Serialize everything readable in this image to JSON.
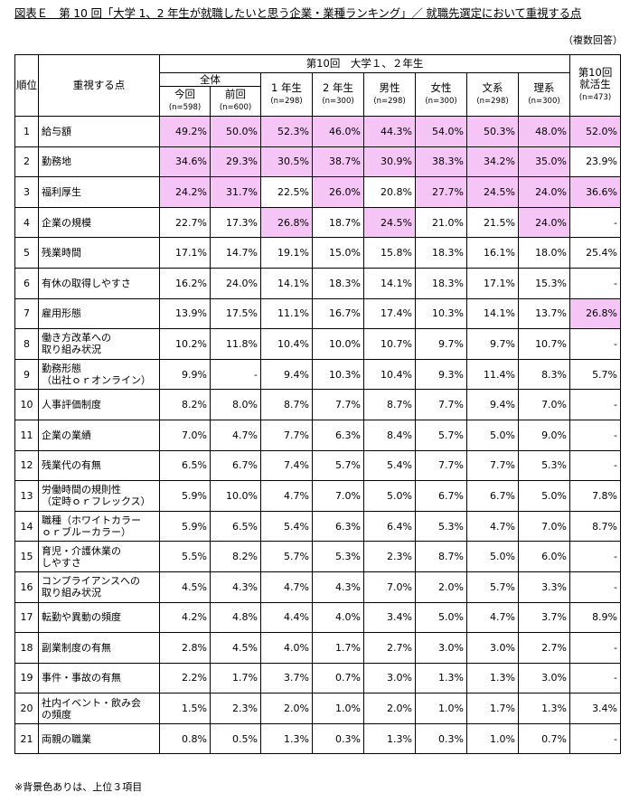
{
  "title": "図表Ｅ　第 10 回「大学 1、2 年生が就職したいと思う企業・業種ランキング」／ 就職先選定において重視する点",
  "note_top": "（複数回答）",
  "footnote": "※背景色ありは、上位３項目",
  "highlight_color": "#f5c6f5",
  "headers": {
    "rank": "順位",
    "item": "重視する点",
    "group": "第10回　大学１、２年生",
    "total": "全体",
    "current": "今回",
    "current_n": "(n=598)",
    "previous": "前回",
    "previous_n": "(n=600)",
    "year1": "1 年生",
    "year1_n": "(n=298)",
    "year2": "2 年生",
    "year2_n": "(n=300)",
    "male": "男性",
    "male_n": "(n=298)",
    "female": "女性",
    "female_n": "(n=300)",
    "humanities": "文系",
    "humanities_n": "(n=298)",
    "science": "理系",
    "science_n": "(n=300)",
    "jobhunt": "第10回\n就活生",
    "jobhunt_n": "(n=473)"
  },
  "rows": [
    {
      "rank": "1",
      "item": "給与額",
      "values": [
        "49.2%",
        "50.0%",
        "52.3%",
        "46.0%",
        "44.3%",
        "54.0%",
        "50.3%",
        "48.0%",
        "52.0%"
      ],
      "hl": [
        1,
        1,
        1,
        1,
        1,
        1,
        1,
        1,
        1
      ]
    },
    {
      "rank": "2",
      "item": "勤務地",
      "values": [
        "34.6%",
        "29.3%",
        "30.5%",
        "38.7%",
        "30.9%",
        "38.3%",
        "34.2%",
        "35.0%",
        "23.9%"
      ],
      "hl": [
        1,
        1,
        1,
        1,
        1,
        1,
        1,
        1,
        0
      ]
    },
    {
      "rank": "3",
      "item": "福利厚生",
      "values": [
        "24.2%",
        "31.7%",
        "22.5%",
        "26.0%",
        "20.8%",
        "27.7%",
        "24.5%",
        "24.0%",
        "36.6%"
      ],
      "hl": [
        1,
        1,
        0,
        1,
        0,
        1,
        1,
        1,
        1
      ]
    },
    {
      "rank": "4",
      "item": "企業の規模",
      "values": [
        "22.7%",
        "17.3%",
        "26.8%",
        "18.7%",
        "24.5%",
        "21.0%",
        "21.5%",
        "24.0%",
        "-"
      ],
      "hl": [
        0,
        0,
        1,
        0,
        1,
        0,
        0,
        1,
        0
      ]
    },
    {
      "rank": "5",
      "item": "残業時間",
      "values": [
        "17.1%",
        "14.7%",
        "19.1%",
        "15.0%",
        "15.8%",
        "18.3%",
        "16.1%",
        "18.0%",
        "25.4%"
      ],
      "hl": [
        0,
        0,
        0,
        0,
        0,
        0,
        0,
        0,
        0
      ]
    },
    {
      "rank": "6",
      "item": "有休の取得しやすさ",
      "values": [
        "16.2%",
        "24.0%",
        "14.1%",
        "18.3%",
        "14.1%",
        "18.3%",
        "17.1%",
        "15.3%",
        "-"
      ],
      "hl": [
        0,
        0,
        0,
        0,
        0,
        0,
        0,
        0,
        0
      ]
    },
    {
      "rank": "7",
      "item": "雇用形態",
      "values": [
        "13.9%",
        "17.5%",
        "11.1%",
        "16.7%",
        "17.4%",
        "10.3%",
        "14.1%",
        "13.7%",
        "26.8%"
      ],
      "hl": [
        0,
        0,
        0,
        0,
        0,
        0,
        0,
        0,
        1
      ]
    },
    {
      "rank": "8",
      "item": "働き方改革への\n取り組み状況",
      "values": [
        "10.2%",
        "11.8%",
        "10.4%",
        "10.0%",
        "10.7%",
        "9.7%",
        "9.7%",
        "10.7%",
        "-"
      ],
      "hl": [
        0,
        0,
        0,
        0,
        0,
        0,
        0,
        0,
        0
      ]
    },
    {
      "rank": "9",
      "item": "勤務形態\n（出社ｏｒオンライン）",
      "values": [
        "9.9%",
        "-",
        "9.4%",
        "10.3%",
        "10.4%",
        "9.3%",
        "11.4%",
        "8.3%",
        "5.7%"
      ],
      "hl": [
        0,
        0,
        0,
        0,
        0,
        0,
        0,
        0,
        0
      ]
    },
    {
      "rank": "10",
      "item": "人事評価制度",
      "values": [
        "8.2%",
        "8.0%",
        "8.7%",
        "7.7%",
        "8.7%",
        "7.7%",
        "9.4%",
        "7.0%",
        "-"
      ],
      "hl": [
        0,
        0,
        0,
        0,
        0,
        0,
        0,
        0,
        0
      ]
    },
    {
      "rank": "11",
      "item": "企業の業績",
      "values": [
        "7.0%",
        "4.7%",
        "7.7%",
        "6.3%",
        "8.4%",
        "5.7%",
        "5.0%",
        "9.0%",
        "-"
      ],
      "hl": [
        0,
        0,
        0,
        0,
        0,
        0,
        0,
        0,
        0
      ]
    },
    {
      "rank": "12",
      "item": "残業代の有無",
      "values": [
        "6.5%",
        "6.7%",
        "7.4%",
        "5.7%",
        "5.4%",
        "7.7%",
        "7.7%",
        "5.3%",
        "-"
      ],
      "hl": [
        0,
        0,
        0,
        0,
        0,
        0,
        0,
        0,
        0
      ]
    },
    {
      "rank": "13",
      "item": "労働時間の規則性\n（定時ｏｒフレックス）",
      "values": [
        "5.9%",
        "10.0%",
        "4.7%",
        "7.0%",
        "5.0%",
        "6.7%",
        "6.7%",
        "5.0%",
        "7.8%"
      ],
      "hl": [
        0,
        0,
        0,
        0,
        0,
        0,
        0,
        0,
        0
      ]
    },
    {
      "rank": "14",
      "item": "職種（ホワイトカラー\nｏｒブルーカラー）",
      "values": [
        "5.9%",
        "6.5%",
        "5.4%",
        "6.3%",
        "6.4%",
        "5.3%",
        "4.7%",
        "7.0%",
        "8.7%"
      ],
      "hl": [
        0,
        0,
        0,
        0,
        0,
        0,
        0,
        0,
        0
      ]
    },
    {
      "rank": "15",
      "item": "育児・介護休業の\nしやすさ",
      "values": [
        "5.5%",
        "8.2%",
        "5.7%",
        "5.3%",
        "2.3%",
        "8.7%",
        "5.0%",
        "6.0%",
        "-"
      ],
      "hl": [
        0,
        0,
        0,
        0,
        0,
        0,
        0,
        0,
        0
      ]
    },
    {
      "rank": "16",
      "item": "コンプライアンスへの\n取り組み状況",
      "values": [
        "4.5%",
        "4.3%",
        "4.7%",
        "4.3%",
        "7.0%",
        "2.0%",
        "5.7%",
        "3.3%",
        "-"
      ],
      "hl": [
        0,
        0,
        0,
        0,
        0,
        0,
        0,
        0,
        0
      ]
    },
    {
      "rank": "17",
      "item": "転勤や異動の頻度",
      "values": [
        "4.2%",
        "4.8%",
        "4.4%",
        "4.0%",
        "3.4%",
        "5.0%",
        "4.7%",
        "3.7%",
        "8.9%"
      ],
      "hl": [
        0,
        0,
        0,
        0,
        0,
        0,
        0,
        0,
        0
      ]
    },
    {
      "rank": "18",
      "item": "副業制度の有無",
      "values": [
        "2.8%",
        "4.5%",
        "4.0%",
        "1.7%",
        "2.7%",
        "3.0%",
        "3.0%",
        "2.7%",
        "-"
      ],
      "hl": [
        0,
        0,
        0,
        0,
        0,
        0,
        0,
        0,
        0
      ]
    },
    {
      "rank": "19",
      "item": "事件・事故の有無",
      "values": [
        "2.2%",
        "1.7%",
        "3.7%",
        "0.7%",
        "3.0%",
        "1.3%",
        "1.3%",
        "3.0%",
        "-"
      ],
      "hl": [
        0,
        0,
        0,
        0,
        0,
        0,
        0,
        0,
        0
      ]
    },
    {
      "rank": "20",
      "item": "社内イベント・飲み会\nの頻度",
      "values": [
        "1.5%",
        "2.3%",
        "2.0%",
        "1.0%",
        "2.0%",
        "1.0%",
        "1.7%",
        "1.3%",
        "3.4%"
      ],
      "hl": [
        0,
        0,
        0,
        0,
        0,
        0,
        0,
        0,
        0
      ]
    },
    {
      "rank": "21",
      "item": "両親の職業",
      "values": [
        "0.8%",
        "0.5%",
        "1.3%",
        "0.3%",
        "1.3%",
        "0.3%",
        "1.0%",
        "0.7%",
        "-"
      ],
      "hl": [
        0,
        0,
        0,
        0,
        0,
        0,
        0,
        0,
        0
      ]
    }
  ]
}
